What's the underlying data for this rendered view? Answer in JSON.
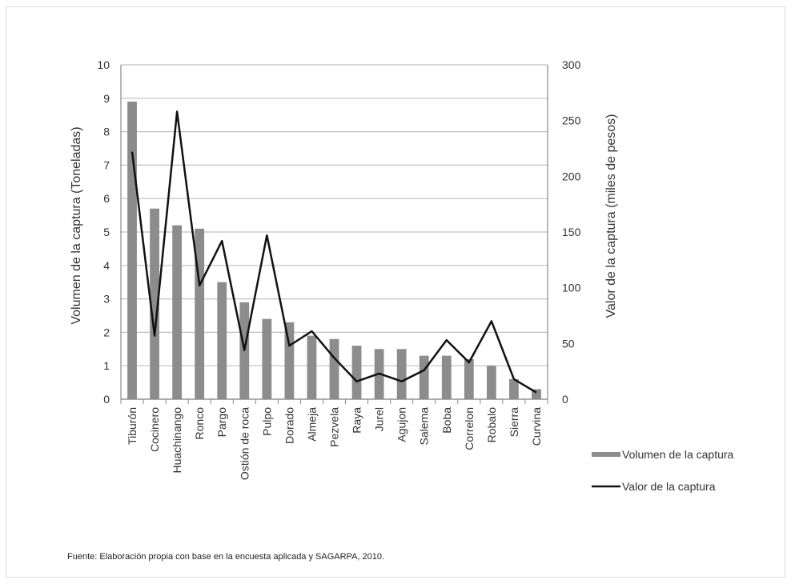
{
  "chart_data": {
    "type": "bar",
    "categories": [
      "Tiburón",
      "Cocinero",
      "Huachinango",
      "Ronco",
      "Pargo",
      "Ostión de roca",
      "Pulpo",
      "Dorado",
      "Almeja",
      "Pezvela",
      "Raya",
      "Jurel",
      "Agujon",
      "Salema",
      "Boba",
      "Correlon",
      "Robalo",
      "Sierra",
      "Curvina"
    ],
    "series": [
      {
        "name": "Volumen de la captura",
        "type": "bar",
        "axis": "left",
        "values": [
          8.9,
          5.7,
          5.2,
          5.1,
          3.5,
          2.9,
          2.4,
          2.3,
          1.9,
          1.8,
          1.6,
          1.5,
          1.5,
          1.3,
          1.3,
          1.2,
          1.0,
          0.6,
          0.3
        ]
      },
      {
        "name": "Valor de la captura",
        "type": "line",
        "axis": "right",
        "values": [
          222,
          57,
          258,
          102,
          142,
          44,
          147,
          48,
          61,
          37,
          16,
          23,
          16,
          26,
          53,
          33,
          70,
          18,
          6
        ]
      }
    ],
    "ylabel": "Volumen de la captura (Toneladas)",
    "y2label": "Valor de la captura (miles de pesos)",
    "ylim": [
      0,
      10
    ],
    "y2lim": [
      0,
      300
    ],
    "yticks": [
      "0",
      "1",
      "2",
      "3",
      "4",
      "5",
      "6",
      "7",
      "8",
      "9",
      "10"
    ],
    "y2ticks": [
      "0",
      "50",
      "100",
      "150",
      "200",
      "250",
      "300"
    ],
    "grid": true,
    "legend_position": "right-bottom",
    "colors": {
      "bar": "#8c8c8c",
      "line": "#111111",
      "grid": "#c0c0c0",
      "axis": "#888888"
    }
  },
  "source_note": "Fuente: Elaboración propia con base en la encuesta aplicada y SAGARPA, 2010."
}
